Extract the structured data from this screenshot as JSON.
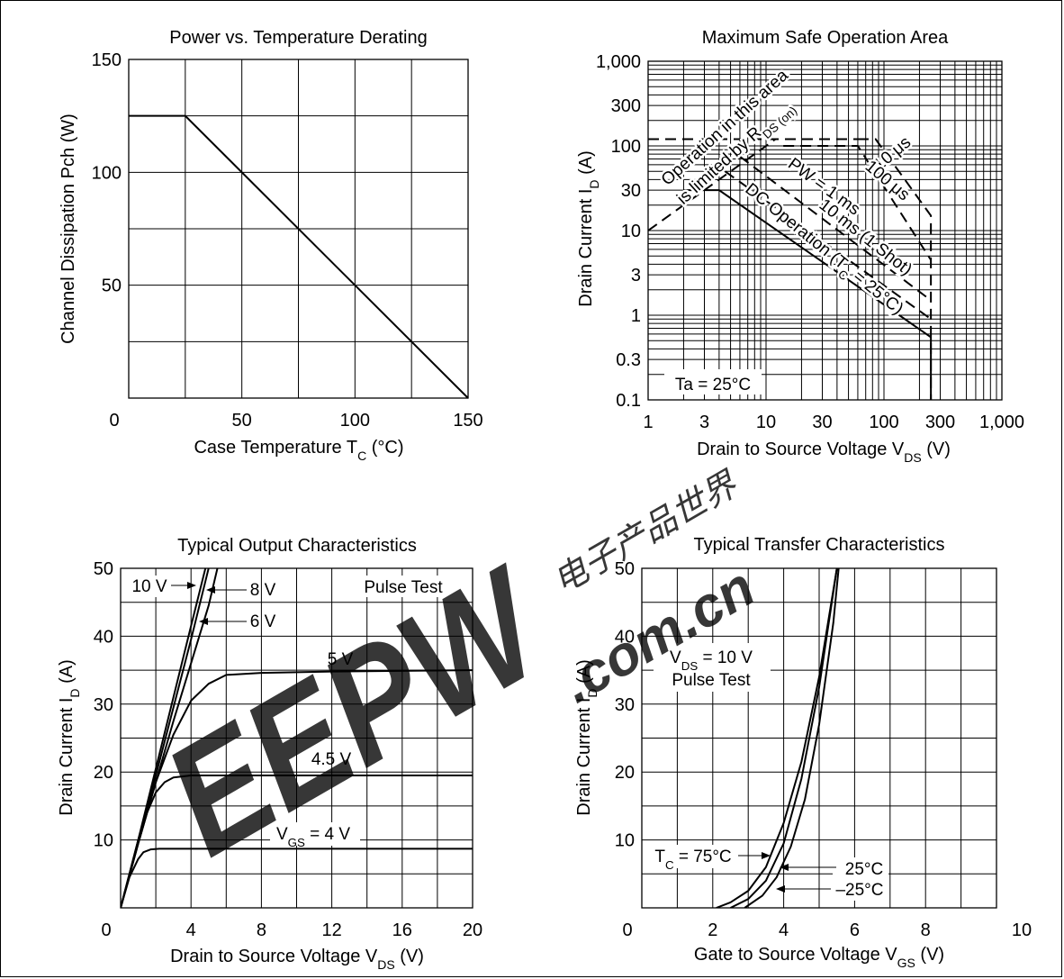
{
  "chart_data": [
    {
      "id": "derating",
      "type": "line",
      "title": "Power vs. Temperature Derating",
      "xlabel": "Case Temperature  T",
      "xlabel_sub": "C",
      "xlabel_unit": "  (°C)",
      "ylabel": "Channel Dissipation  Pch  (W)",
      "xlim": [
        0,
        150
      ],
      "ylim": [
        0,
        150
      ],
      "xticks": [
        "0",
        "50",
        "100",
        "150"
      ],
      "yticks": [
        "50",
        "100",
        "150"
      ],
      "grid": true,
      "series": [
        {
          "x": [
            0,
            25,
            150
          ],
          "y": [
            125,
            125,
            0
          ]
        }
      ]
    },
    {
      "id": "soa",
      "type": "line",
      "title": "Maximum Safe Operation Area",
      "xlabel": "Drain to Source Voltage  V",
      "xlabel_sub": "DS",
      "xlabel_unit": "  (V)",
      "ylabel": "Drain Current  I",
      "ylabel_sub": "D",
      "ylabel_unit": "  (A)",
      "xscale": "log",
      "yscale": "log",
      "xlim": [
        1,
        1000
      ],
      "ylim": [
        0.1,
        1000
      ],
      "xticks": [
        "1",
        "3",
        "10",
        "30",
        "100",
        "300",
        "1,000"
      ],
      "yticks": [
        "0.1",
        "0.3",
        "1",
        "3",
        "10",
        "30",
        "100",
        "300",
        "1,000"
      ],
      "grid": true,
      "annotations": {
        "region_line1": "Operation in this area",
        "region_line2": "is limited by R",
        "region_sub": "DS (on)",
        "pw_10us": "10 μs",
        "pw_100us": "100 μs",
        "pw_1ms": "PW = 1 ms",
        "pw_10ms": "10 ms (1 Shot)",
        "dc": "DC Operation (T",
        "dc_sub": "C",
        "dc_end": " = 25°C)",
        "ta": "Ta = 25°C"
      },
      "series": [
        {
          "name": "10 μs",
          "style": "dashed",
          "x": [
            60,
            85,
            250,
            250
          ],
          "y": [
            120,
            120,
            15,
            0.1
          ]
        },
        {
          "name": "100 μs",
          "style": "dashed",
          "x": [
            14,
            60,
            250
          ],
          "y": [
            100,
            100,
            4.5
          ]
        },
        {
          "name": "1 ms",
          "style": "dashed",
          "x": [
            6,
            250
          ],
          "y": [
            75,
            1.5
          ]
        },
        {
          "name": "10 ms",
          "style": "dashed",
          "x": [
            4.5,
            250
          ],
          "y": [
            50,
            0.9
          ]
        },
        {
          "name": "DC",
          "style": "solid",
          "x": [
            2,
            4,
            250,
            250
          ],
          "y": [
            30,
            30,
            0.55,
            0.1
          ]
        },
        {
          "name": "RDS(on) limit",
          "style": "dashed",
          "x": [
            1,
            12
          ],
          "y": [
            10,
            120
          ]
        },
        {
          "name": "ID max",
          "style": "dashed",
          "x": [
            1,
            60
          ],
          "y": [
            120,
            120
          ]
        }
      ]
    },
    {
      "id": "output",
      "type": "line",
      "title": "Typical Output Characteristics",
      "xlabel": "Drain to Source Voltage  V",
      "xlabel_sub": "DS",
      "xlabel_unit": "  (V)",
      "ylabel": "Drain Current  I",
      "ylabel_sub": "D",
      "ylabel_unit": "  (A)",
      "xlim": [
        0,
        20
      ],
      "ylim": [
        0,
        50
      ],
      "xticks": [
        "0",
        "4",
        "8",
        "12",
        "16",
        "20"
      ],
      "yticks": [
        "10",
        "20",
        "30",
        "40",
        "50"
      ],
      "grid": true,
      "annotations": {
        "pulse": "Pulse Test",
        "vgs_prefix": "V",
        "vgs_sub": "GS",
        "vgs_suffix": " = 4 V"
      },
      "series": [
        {
          "name": "10 V",
          "x": [
            0,
            1,
            2,
            3,
            4,
            5.3
          ],
          "y": [
            0,
            10,
            20.5,
            31,
            41.5,
            55
          ]
        },
        {
          "name": "8 V",
          "x": [
            0,
            1,
            2,
            3,
            4,
            5
          ],
          "y": [
            0,
            10,
            19.5,
            29.5,
            39.5,
            50
          ]
        },
        {
          "name": "6 V",
          "x": [
            0,
            1,
            2,
            3,
            4,
            5,
            5.5
          ],
          "y": [
            0,
            9.5,
            18.5,
            27.5,
            36,
            44.5,
            50
          ]
        },
        {
          "name": "5 V",
          "x": [
            0,
            1,
            2,
            3,
            4,
            5,
            6,
            8,
            12,
            20
          ],
          "y": [
            0,
            9.5,
            18.5,
            25.5,
            30.5,
            33,
            34.3,
            34.6,
            34.8,
            35
          ]
        },
        {
          "name": "4.5 V",
          "x": [
            0,
            1,
            1.5,
            2,
            2.5,
            3,
            4,
            6,
            20
          ],
          "y": [
            0,
            9.5,
            14,
            17,
            18.5,
            19.2,
            19.5,
            19.5,
            19.5
          ]
        },
        {
          "name": "4 V",
          "x": [
            0,
            0.5,
            1,
            1.3,
            1.7,
            2.2,
            3,
            20
          ],
          "y": [
            0,
            4.5,
            7.2,
            8.2,
            8.6,
            8.7,
            8.7,
            8.7
          ]
        }
      ]
    },
    {
      "id": "transfer",
      "type": "line",
      "title": "Typical Transfer Characteristics",
      "xlabel": "Gate to Source Voltage  V",
      "xlabel_sub": "GS",
      "xlabel_unit": "  (V)",
      "ylabel": "Drain Current  I",
      "ylabel_sub": "D",
      "ylabel_unit": "  (A)",
      "xlim": [
        0,
        10
      ],
      "ylim": [
        0,
        50
      ],
      "xticks": [
        "0",
        "2",
        "4",
        "6",
        "8",
        "10"
      ],
      "yticks": [
        "10",
        "20",
        "30",
        "40",
        "50"
      ],
      "grid": true,
      "annotations": {
        "cond_prefix": "V",
        "cond_sub": "DS",
        "cond_suffix": " = 10 V",
        "pulse": "Pulse Test"
      },
      "series": [
        {
          "name": "75°C",
          "label_prefix": "T",
          "label_sub": "C",
          "label_suffix": " = 75°C",
          "x": [
            2.1,
            2.5,
            3,
            3.5,
            4,
            4.5,
            5,
            5.5
          ],
          "y": [
            0,
            0.8,
            2.5,
            6,
            12.5,
            21.5,
            34,
            50
          ]
        },
        {
          "name": "25°C",
          "label": "25°C",
          "x": [
            2.5,
            3,
            3.5,
            4,
            4.5,
            5,
            5.5
          ],
          "y": [
            0,
            1.3,
            4,
            9.5,
            19,
            32.5,
            50
          ]
        },
        {
          "name": "-25°C",
          "label": "–25°C",
          "x": [
            2.9,
            3.4,
            3.8,
            4.2,
            4.6,
            5,
            5.4,
            5.55
          ],
          "y": [
            0,
            1.8,
            4.5,
            9,
            16,
            27,
            42,
            50
          ]
        }
      ]
    }
  ],
  "watermark": {
    "main": "EEPW",
    "domain": ".com.cn",
    "cjk": "电子产品世界",
    "color": "#e8545c"
  }
}
